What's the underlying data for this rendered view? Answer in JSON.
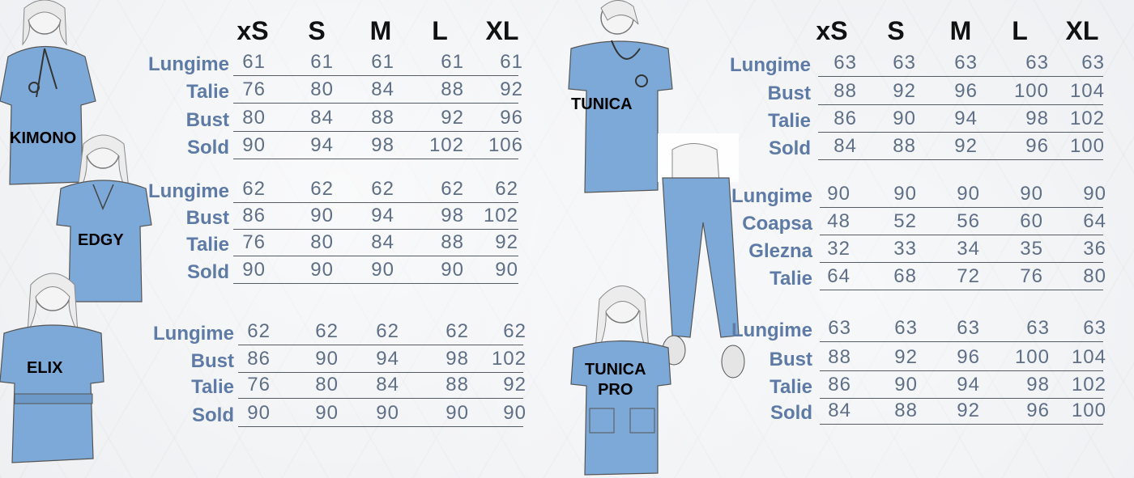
{
  "sizes": [
    "xS",
    "S",
    "M",
    "L",
    "XL"
  ],
  "colors": {
    "garment": "#7da9d8",
    "label": "#5e7aa6",
    "value": "#5f6f86"
  },
  "products": {
    "kimono": {
      "name": "KIMONO",
      "rows": [
        {
          "label": "Lungime",
          "values": [
            "61",
            "61",
            "61",
            "61",
            "61"
          ]
        },
        {
          "label": "Talie",
          "values": [
            "76",
            "80",
            "84",
            "88",
            "92"
          ]
        },
        {
          "label": "Bust",
          "values": [
            "80",
            "84",
            "88",
            "92",
            "96"
          ]
        },
        {
          "label": "Sold",
          "values": [
            "90",
            "94",
            "98",
            "102",
            "106"
          ]
        }
      ]
    },
    "edgy": {
      "name": "EDGY",
      "rows": [
        {
          "label": "Lungime",
          "values": [
            "62",
            "62",
            "62",
            "62",
            "62"
          ]
        },
        {
          "label": "Bust",
          "values": [
            "86",
            "90",
            "94",
            "98",
            "102"
          ]
        },
        {
          "label": "Talie",
          "values": [
            "76",
            "80",
            "84",
            "88",
            "92"
          ]
        },
        {
          "label": "Sold",
          "values": [
            "90",
            "90",
            "90",
            "90",
            "90"
          ]
        }
      ]
    },
    "elix": {
      "name": "ELIX",
      "rows": [
        {
          "label": "Lungime",
          "values": [
            "62",
            "62",
            "62",
            "62",
            "62"
          ]
        },
        {
          "label": "Bust",
          "values": [
            "86",
            "90",
            "94",
            "98",
            "102"
          ]
        },
        {
          "label": "Talie",
          "values": [
            "76",
            "80",
            "84",
            "88",
            "92"
          ]
        },
        {
          "label": "Sold",
          "values": [
            "90",
            "90",
            "90",
            "90",
            "90"
          ]
        }
      ]
    },
    "tunica": {
      "name": "TUNICA",
      "rows": [
        {
          "label": "Lungime",
          "values": [
            "63",
            "63",
            "63",
            "63",
            "63"
          ]
        },
        {
          "label": "Bust",
          "values": [
            "88",
            "92",
            "96",
            "100",
            "104"
          ]
        },
        {
          "label": "Talie",
          "values": [
            "86",
            "90",
            "94",
            "98",
            "102"
          ]
        },
        {
          "label": "Sold",
          "values": [
            "84",
            "88",
            "92",
            "96",
            "100"
          ]
        }
      ]
    },
    "pants": {
      "rows": [
        {
          "label": "Lungime",
          "values": [
            "90",
            "90",
            "90",
            "90",
            "90"
          ]
        },
        {
          "label": "Coapsa",
          "values": [
            "48",
            "52",
            "56",
            "60",
            "64"
          ]
        },
        {
          "label": "Glezna",
          "values": [
            "32",
            "33",
            "34",
            "35",
            "36"
          ]
        },
        {
          "label": "Talie",
          "values": [
            "64",
            "68",
            "72",
            "76",
            "80"
          ]
        }
      ]
    },
    "tunica_pro": {
      "name_line1": "TUNICA",
      "name_line2": "PRO",
      "rows": [
        {
          "label": "Lungime",
          "values": [
            "63",
            "63",
            "63",
            "63",
            "63"
          ]
        },
        {
          "label": "Bust",
          "values": [
            "88",
            "92",
            "96",
            "100",
            "104"
          ]
        },
        {
          "label": "Talie",
          "values": [
            "86",
            "90",
            "94",
            "98",
            "102"
          ]
        },
        {
          "label": "Sold",
          "values": [
            "84",
            "88",
            "92",
            "96",
            "100"
          ]
        }
      ]
    }
  }
}
